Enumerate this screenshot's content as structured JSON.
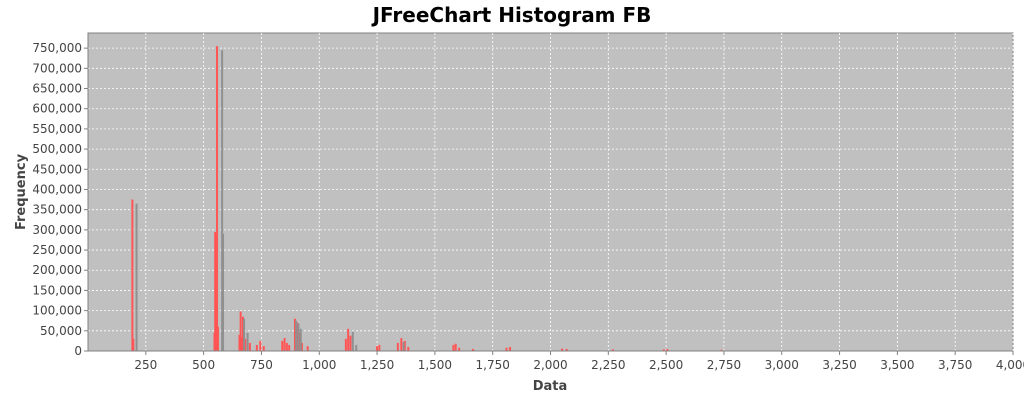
{
  "chart_data": {
    "type": "bar",
    "title": "JFreeChart Histogram FB",
    "xlabel": "Data",
    "ylabel": "Frequency",
    "xlim": [
      0,
      4000
    ],
    "ylim": [
      0,
      787500
    ],
    "x_ticks": [
      250,
      500,
      750,
      1000,
      1250,
      1500,
      1750,
      2000,
      2250,
      2500,
      2750,
      3000,
      3250,
      3500,
      3750,
      4000
    ],
    "x_tick_labels": [
      "250",
      "500",
      "750",
      "1,000",
      "1,250",
      "1,500",
      "1,750",
      "2,000",
      "2,250",
      "2,500",
      "2,750",
      "3,000",
      "3,250",
      "3,500",
      "3,750",
      "4,000"
    ],
    "y_ticks": [
      0,
      50000,
      100000,
      150000,
      200000,
      250000,
      300000,
      350000,
      400000,
      450000,
      500000,
      550000,
      600000,
      650000,
      700000,
      750000
    ],
    "y_tick_labels": [
      "0",
      "50,000",
      "100,000",
      "150,000",
      "200,000",
      "250,000",
      "300,000",
      "350,000",
      "400,000",
      "450,000",
      "500,000",
      "550,000",
      "600,000",
      "650,000",
      "700,000",
      "750,000"
    ],
    "grid": true,
    "background_color": "#c0c0c0",
    "grid_color": "#ffffff",
    "series": [
      {
        "color": "#ff5555",
        "bars": [
          {
            "x": 192,
            "y": 375000
          },
          {
            "x": 196,
            "y": 30000
          },
          {
            "x": 547,
            "y": 45000
          },
          {
            "x": 550,
            "y": 295000
          },
          {
            "x": 555,
            "y": 285000
          },
          {
            "x": 558,
            "y": 755000
          },
          {
            "x": 562,
            "y": 60000
          },
          {
            "x": 655,
            "y": 40000
          },
          {
            "x": 660,
            "y": 98000
          },
          {
            "x": 665,
            "y": 35000
          },
          {
            "x": 670,
            "y": 85000
          },
          {
            "x": 680,
            "y": 30000
          },
          {
            "x": 700,
            "y": 20000
          },
          {
            "x": 730,
            "y": 15000
          },
          {
            "x": 745,
            "y": 25000
          },
          {
            "x": 760,
            "y": 12000
          },
          {
            "x": 840,
            "y": 25000
          },
          {
            "x": 850,
            "y": 32000
          },
          {
            "x": 860,
            "y": 20000
          },
          {
            "x": 870,
            "y": 15000
          },
          {
            "x": 895,
            "y": 80000
          },
          {
            "x": 905,
            "y": 70000
          },
          {
            "x": 915,
            "y": 45000
          },
          {
            "x": 925,
            "y": 20000
          },
          {
            "x": 950,
            "y": 12000
          },
          {
            "x": 1115,
            "y": 30000
          },
          {
            "x": 1125,
            "y": 55000
          },
          {
            "x": 1135,
            "y": 38000
          },
          {
            "x": 1250,
            "y": 12000
          },
          {
            "x": 1260,
            "y": 15000
          },
          {
            "x": 1340,
            "y": 20000
          },
          {
            "x": 1355,
            "y": 32000
          },
          {
            "x": 1370,
            "y": 25000
          },
          {
            "x": 1385,
            "y": 10000
          },
          {
            "x": 1580,
            "y": 15000
          },
          {
            "x": 1590,
            "y": 18000
          },
          {
            "x": 1605,
            "y": 8000
          },
          {
            "x": 1665,
            "y": 5000
          },
          {
            "x": 1810,
            "y": 8000
          },
          {
            "x": 1825,
            "y": 10000
          },
          {
            "x": 2050,
            "y": 6000
          },
          {
            "x": 2070,
            "y": 5000
          },
          {
            "x": 2270,
            "y": 4000
          },
          {
            "x": 2490,
            "y": 4000
          },
          {
            "x": 2505,
            "y": 5000
          },
          {
            "x": 2740,
            "y": 3000
          }
        ]
      },
      {
        "color": "#909090",
        "bars": [
          {
            "x": 210,
            "y": 365000
          },
          {
            "x": 580,
            "y": 745000
          },
          {
            "x": 584,
            "y": 290000
          },
          {
            "x": 675,
            "y": 80000
          },
          {
            "x": 690,
            "y": 45000
          },
          {
            "x": 900,
            "y": 75000
          },
          {
            "x": 910,
            "y": 68000
          },
          {
            "x": 920,
            "y": 55000
          },
          {
            "x": 1145,
            "y": 48000
          },
          {
            "x": 1160,
            "y": 15000
          },
          {
            "x": 1365,
            "y": 22000
          }
        ]
      }
    ]
  }
}
